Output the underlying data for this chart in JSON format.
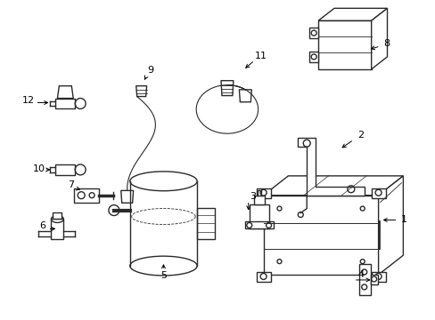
{
  "bg_color": "#f5f5f5",
  "line_color": "#2a2a2a",
  "text_color": "#000000",
  "figsize": [
    4.89,
    3.6
  ],
  "dpi": 100,
  "xlim": [
    0,
    489
  ],
  "ylim": [
    0,
    360
  ]
}
